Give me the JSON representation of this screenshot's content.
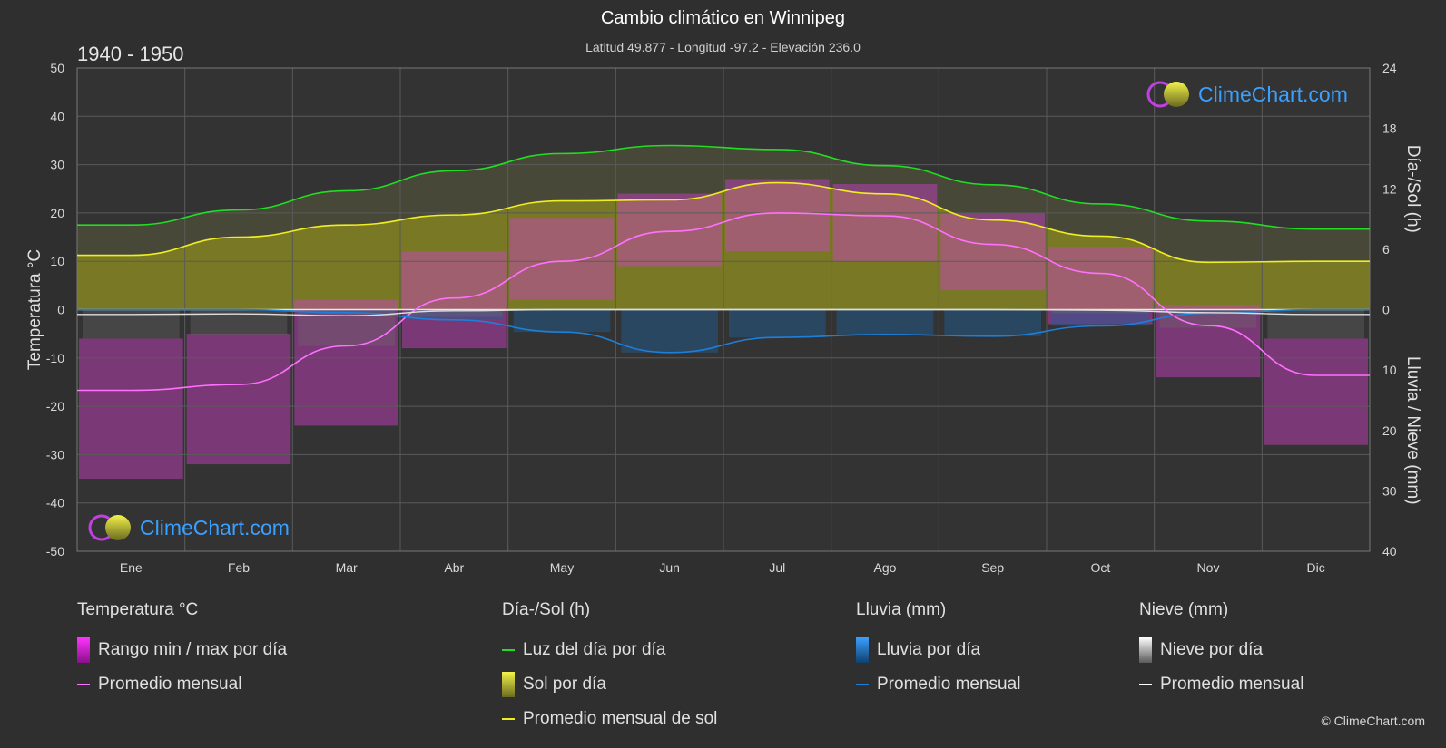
{
  "title": "Cambio climático en Winnipeg",
  "subtitle": "Latitud 49.877 - Longitud -97.2 - Elevación 236.0",
  "period": "1940 - 1950",
  "brand": "ClimeChart.com",
  "copyright": "© ClimeChart.com",
  "colors": {
    "background": "#2f2f2f",
    "temp_range": "#e020e0",
    "temp_avg": "#ff70ff",
    "daylight": "#22dd22",
    "sun_avg": "#eeee22",
    "rain": "#1e7fd8",
    "snow": "#ffffff"
  },
  "chart_data": {
    "type": "line",
    "categories": [
      "Ene",
      "Feb",
      "Mar",
      "Abr",
      "May",
      "Jun",
      "Jul",
      "Ago",
      "Sep",
      "Oct",
      "Nov",
      "Dic"
    ],
    "y_left": {
      "label": "Temperatura °C",
      "range": [
        -50,
        50
      ],
      "ticks": [
        50,
        40,
        30,
        20,
        10,
        0,
        -10,
        -20,
        -30,
        -40,
        -50
      ]
    },
    "y_right_top": {
      "label": "Día-/Sol (h)",
      "range": [
        0,
        24
      ],
      "ticks": [
        24,
        18,
        12,
        6,
        0
      ]
    },
    "y_right_bottom": {
      "label": "Lluvia / Nieve (mm)",
      "range": [
        0,
        40
      ],
      "ticks": [
        0,
        10,
        20,
        30,
        40
      ]
    },
    "series": [
      {
        "name": "Luz del día por día",
        "unit": "h",
        "values": [
          8.4,
          9.9,
          11.8,
          13.8,
          15.5,
          16.3,
          15.9,
          14.3,
          12.4,
          10.5,
          8.8,
          8.0
        ]
      },
      {
        "name": "Promedio mensual de sol",
        "unit": "h",
        "values": [
          5.4,
          7.2,
          8.4,
          9.4,
          10.8,
          10.9,
          12.6,
          11.5,
          8.9,
          7.3,
          4.7,
          4.8
        ]
      },
      {
        "name": "Promedio mensual",
        "unit": "°C",
        "values": [
          -16.7,
          -15.5,
          -7.5,
          2.4,
          10.0,
          16.2,
          20.0,
          19.4,
          13.5,
          7.5,
          -3.3,
          -13.6
        ]
      },
      {
        "name": "Lluvia promedio mensual",
        "unit": "mm",
        "values": [
          0.0,
          0.0,
          0.5,
          1.7,
          3.7,
          7.1,
          4.6,
          4.1,
          4.4,
          2.7,
          0.6,
          0.0
        ]
      },
      {
        "name": "Nieve promedio mensual",
        "unit": "mm",
        "values": [
          0.8,
          0.7,
          1.0,
          0.2,
          0.0,
          0.0,
          0.0,
          0.0,
          0.0,
          0.1,
          0.5,
          0.8
        ]
      }
    ],
    "temp_range_monthly": {
      "min": [
        -35,
        -32,
        -24,
        -8,
        2,
        9,
        12,
        10,
        4,
        -3,
        -14,
        -28
      ],
      "max": [
        -6,
        -5,
        2,
        12,
        19,
        24,
        27,
        26,
        20,
        13,
        1,
        -6
      ]
    },
    "grid": true
  },
  "legend": {
    "temp": {
      "head": "Temperatura °C",
      "items": [
        "Rango min / max por día",
        "Promedio mensual"
      ]
    },
    "sun": {
      "head": "Día-/Sol (h)",
      "items": [
        "Luz del día por día",
        "Sol por día",
        "Promedio mensual de sol"
      ]
    },
    "rain": {
      "head": "Lluvia (mm)",
      "items": [
        "Lluvia por día",
        "Promedio mensual"
      ]
    },
    "snow": {
      "head": "Nieve (mm)",
      "items": [
        "Nieve por día",
        "Promedio mensual"
      ]
    }
  }
}
